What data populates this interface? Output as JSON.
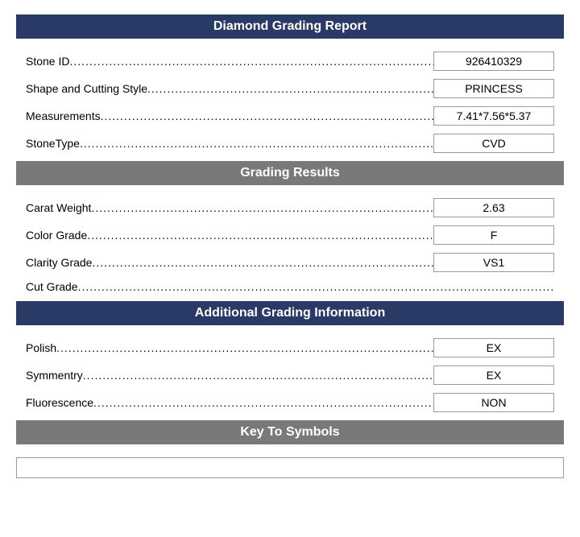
{
  "colors": {
    "navy": "#2a3a66",
    "gray": "#79797b",
    "border": "#9a9a9a",
    "text": "#000000",
    "background": "#ffffff"
  },
  "sections": {
    "report": {
      "title": "Diamond Grading Report",
      "rows": [
        {
          "label": "Stone ID",
          "value": "926410329"
        },
        {
          "label": "Shape and Cutting Style",
          "value": "PRINCESS"
        },
        {
          "label": "Measurements",
          "value": "7.41*7.56*5.37"
        },
        {
          "label": "StoneType",
          "value": "CVD"
        }
      ]
    },
    "grading": {
      "title": "Grading Results",
      "rows": [
        {
          "label": "Carat Weight",
          "value": "2.63"
        },
        {
          "label": "Color Grade",
          "value": "F"
        },
        {
          "label": "Clarity Grade",
          "value": "VS1"
        },
        {
          "label": "Cut Grade",
          "value": ""
        }
      ]
    },
    "additional": {
      "title": "Additional Grading Information",
      "rows": [
        {
          "label": "Polish",
          "value": "EX"
        },
        {
          "label": "Symmentry",
          "value": "EX"
        },
        {
          "label": "Fluorescence",
          "value": "NON"
        }
      ]
    },
    "symbols": {
      "title": "Key To Symbols"
    }
  }
}
